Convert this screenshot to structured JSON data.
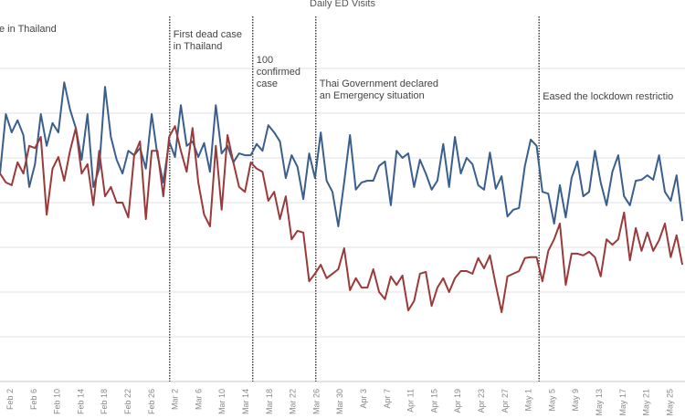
{
  "chart_data": {
    "type": "line",
    "title": "Daily ED Visits",
    "xlabel": "",
    "ylabel": "",
    "grid": true,
    "x_unit": "days from Feb 2",
    "x_range": [
      -1.7,
      114.6
    ],
    "y_unit": "gridline steps (no y-axis labels shown)",
    "ylim": [
      -0.6,
      7.3
    ],
    "gridlines": [
      0,
      1,
      2,
      3,
      4,
      5,
      6,
      7
    ],
    "x_ticks": [
      {
        "label": "Feb 2",
        "day": 0
      },
      {
        "label": "Feb 6",
        "day": 4
      },
      {
        "label": "Feb 10",
        "day": 8
      },
      {
        "label": "Feb 14",
        "day": 12
      },
      {
        "label": "Feb 18",
        "day": 16
      },
      {
        "label": "Feb 22",
        "day": 20
      },
      {
        "label": "Feb 26",
        "day": 24
      },
      {
        "label": "Mar 2",
        "day": 28
      },
      {
        "label": "Mar 6",
        "day": 32
      },
      {
        "label": "Mar 10",
        "day": 36
      },
      {
        "label": "Mar 14",
        "day": 40
      },
      {
        "label": "Mar 18",
        "day": 44
      },
      {
        "label": "Mar 22",
        "day": 48
      },
      {
        "label": "Mar 26",
        "day": 52
      },
      {
        "label": "Mar 30",
        "day": 56
      },
      {
        "label": "Apr 3",
        "day": 60
      },
      {
        "label": "Apr 7",
        "day": 64
      },
      {
        "label": "Apr 11",
        "day": 68
      },
      {
        "label": "Apr 15",
        "day": 72
      },
      {
        "label": "Apr 19",
        "day": 76
      },
      {
        "label": "Apr 23",
        "day": 80
      },
      {
        "label": "Apr 27",
        "day": 84
      },
      {
        "label": "May 1",
        "day": 88
      },
      {
        "label": "May 5",
        "day": 92
      },
      {
        "label": "May 9",
        "day": 96
      },
      {
        "label": "May 13",
        "day": 100
      },
      {
        "label": "May 17",
        "day": 104
      },
      {
        "label": "May 21",
        "day": 108
      },
      {
        "label": "May 25",
        "day": 112
      }
    ],
    "events": [
      {
        "day": -4.5,
        "label": "e in Thailand"
      },
      {
        "day": 27.1,
        "label": "First dead case\nin Thailand"
      },
      {
        "day": 41.2,
        "label": "100\nconfirmed\ncase"
      },
      {
        "day": 51.9,
        "label": "Thai Government declared\nan Emergency situation"
      },
      {
        "day": 89.8,
        "label": "Eased the lockdown restrictio"
      }
    ],
    "series": [
      {
        "name": "blue-series",
        "color": "#3a5f8c",
        "start_day": -1.7,
        "step_days": 0.99,
        "values": [
          4.65,
          5.98,
          5.57,
          5.84,
          5.51,
          4.35,
          4.86,
          5.98,
          5.27,
          5.78,
          5.57,
          6.69,
          6.08,
          5.67,
          4.96,
          5.98,
          4.35,
          4.76,
          6.59,
          5.47,
          4.96,
          4.65,
          5.16,
          5.06,
          5.22,
          4.76,
          5.98,
          5.06,
          4.45,
          5.37,
          5.02,
          6.18,
          5.27,
          5.37,
          5.02,
          5.33,
          4.69,
          6.18,
          5.1,
          5.27,
          4.9,
          5.1,
          5.06,
          5.06,
          5.31,
          5.16,
          5.73,
          5.57,
          5.37,
          4.55,
          5.06,
          4.8,
          4.08,
          5.1,
          4.55,
          5.57,
          4.49,
          4.24,
          3.47,
          4.45,
          5.51,
          4.29,
          4.45,
          4.49,
          4.49,
          4.82,
          4.92,
          3.94,
          5.16,
          5.0,
          5.1,
          4.35,
          4.96,
          4.65,
          4.29,
          4.49,
          5.31,
          4.35,
          5.47,
          4.65,
          5.0,
          4.86,
          4.39,
          4.29,
          5.12,
          4.31,
          4.59,
          3.69,
          3.84,
          3.88,
          4.82,
          5.41,
          5.27,
          4.24,
          4.2,
          3.53,
          4.39,
          3.67,
          4.55,
          4.92,
          4.14,
          4.24,
          5.16,
          4.45,
          3.94,
          4.69,
          5.06,
          4.14,
          3.94,
          4.49,
          4.51,
          4.61,
          4.51,
          5.06,
          4.24,
          4.04,
          4.61,
          3.59
        ]
      },
      {
        "name": "red-series",
        "color": "#9b3a3a",
        "start_day": -1.7,
        "step_days": 0.99,
        "values": [
          4.65,
          4.45,
          4.39,
          4.9,
          4.65,
          5.27,
          5.22,
          5.47,
          3.73,
          4.76,
          5.02,
          4.49,
          5.16,
          5.67,
          4.65,
          4.86,
          3.94,
          5.16,
          4.14,
          4.35,
          4.0,
          4.0,
          3.67,
          5.06,
          5.37,
          3.63,
          5.16,
          5.16,
          4.14,
          5.47,
          5.71,
          5.16,
          4.69,
          5.67,
          4.45,
          3.73,
          3.47,
          5.27,
          3.84,
          5.51,
          4.9,
          4.35,
          4.24,
          4.9,
          4.76,
          4.69,
          4.04,
          4.24,
          3.63,
          4.14,
          3.18,
          3.37,
          3.33,
          2.24,
          2.41,
          2.61,
          2.31,
          2.41,
          2.51,
          2.98,
          2.04,
          2.31,
          2.1,
          2.1,
          2.51,
          2.0,
          1.84,
          2.35,
          2.16,
          2.37,
          1.59,
          1.8,
          2.41,
          2.45,
          1.69,
          2.1,
          2.31,
          2.0,
          2.31,
          2.47,
          2.47,
          2.41,
          2.76,
          2.53,
          2.82,
          2.16,
          1.55,
          2.35,
          2.41,
          2.47,
          2.76,
          2.78,
          2.78,
          2.24,
          2.92,
          3.18,
          3.53,
          2.16,
          2.86,
          2.86,
          2.82,
          2.9,
          2.78,
          2.35,
          3.18,
          3.06,
          3.18,
          3.78,
          2.71,
          3.43,
          2.92,
          3.33,
          2.92,
          3.16,
          3.53,
          2.78,
          3.27,
          2.61
        ]
      }
    ]
  }
}
